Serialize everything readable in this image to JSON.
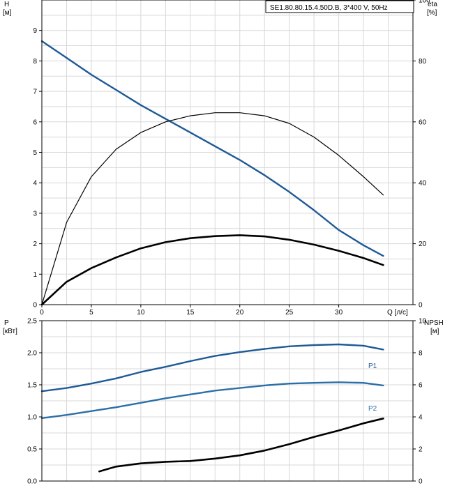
{
  "chart_data": [
    {
      "type": "line",
      "title": "SE1.80.80.15.4.50D.B, 3*400 V, 50Hz",
      "xlabel": "Q [л/с]",
      "ylabel": "H",
      "ylabel_unit": "[м]",
      "y2label": "eta",
      "y2label_unit": "[%]",
      "xlim": [
        0,
        37.5
      ],
      "ylim": [
        0,
        10
      ],
      "y2lim": [
        0,
        100
      ],
      "xticks": [
        "0",
        "5",
        "10",
        "15",
        "20",
        "25",
        "30"
      ],
      "yticks": [
        "0",
        "1",
        "2",
        "3",
        "4",
        "5",
        "6",
        "7",
        "8",
        "9"
      ],
      "y2ticks": [
        "0",
        "20",
        "40",
        "60",
        "80",
        "100"
      ],
      "grid": true,
      "series": [
        {
          "color": "#1f5a96",
          "axis": "left",
          "x": [
            0,
            2.5,
            5,
            7.5,
            10,
            12.5,
            15,
            17.5,
            20,
            22.5,
            25,
            27.5,
            30,
            32.5,
            34.5
          ],
          "y": [
            8.65,
            8.1,
            7.55,
            7.05,
            6.55,
            6.1,
            5.65,
            5.2,
            4.75,
            4.25,
            3.7,
            3.1,
            2.45,
            1.95,
            1.6
          ]
        },
        {
          "color": "#000000",
          "axis": "right",
          "x": [
            0,
            2.5,
            5,
            7.5,
            10,
            12.5,
            15,
            17.5,
            20,
            22.5,
            25,
            27.5,
            30,
            32.5,
            34.5
          ],
          "y": [
            0,
            27,
            42,
            51,
            56.5,
            60,
            62,
            63,
            63,
            62,
            59.5,
            55,
            49,
            42,
            36
          ]
        },
        {
          "color": "#000000",
          "axis": "left",
          "x": [
            0,
            2.5,
            5,
            7.5,
            10,
            12.5,
            15,
            17.5,
            20,
            22.5,
            25,
            27.5,
            30,
            32.5,
            34.5
          ],
          "y": [
            0,
            0.75,
            1.2,
            1.55,
            1.85,
            2.05,
            2.18,
            2.25,
            2.28,
            2.24,
            2.13,
            1.97,
            1.77,
            1.53,
            1.3
          ]
        }
      ]
    },
    {
      "type": "line",
      "xlim": [
        0,
        37.5
      ],
      "ylabel": "P",
      "ylabel_unit": "[кВт]",
      "y2label": "NPSH",
      "y2label_unit": "[м]",
      "ylim": [
        0,
        2.5
      ],
      "y2lim": [
        0,
        10
      ],
      "yticks": [
        "0.0",
        "0.5",
        "1.0",
        "1.5",
        "2.0",
        "2.5"
      ],
      "y2ticks": [
        "0",
        "2",
        "4",
        "6",
        "8",
        "10"
      ],
      "grid": true,
      "series": [
        {
          "name": "P1",
          "color": "#1f5a96",
          "axis": "left",
          "x": [
            0,
            2.5,
            5,
            7.5,
            10,
            12.5,
            15,
            17.5,
            20,
            22.5,
            25,
            27.5,
            30,
            32.5,
            34.5
          ],
          "y": [
            1.4,
            1.45,
            1.52,
            1.6,
            1.7,
            1.78,
            1.87,
            1.95,
            2.01,
            2.06,
            2.1,
            2.12,
            2.13,
            2.11,
            2.05
          ]
        },
        {
          "name": "P2",
          "color": "#2c6fa8",
          "axis": "left",
          "x": [
            0,
            2.5,
            5,
            7.5,
            10,
            12.5,
            15,
            17.5,
            20,
            22.5,
            25,
            27.5,
            30,
            32.5,
            34.5
          ],
          "y": [
            0.98,
            1.03,
            1.09,
            1.15,
            1.22,
            1.29,
            1.35,
            1.41,
            1.45,
            1.49,
            1.52,
            1.53,
            1.54,
            1.53,
            1.49
          ]
        },
        {
          "color": "#000000",
          "axis": "right",
          "x": [
            5.8,
            7.5,
            10,
            12.5,
            15,
            17.5,
            20,
            22.5,
            25,
            27.5,
            30,
            32.5,
            34.5
          ],
          "y": [
            0.6,
            0.9,
            1.1,
            1.2,
            1.25,
            1.4,
            1.6,
            1.9,
            2.3,
            2.75,
            3.15,
            3.6,
            3.9
          ]
        }
      ]
    }
  ]
}
